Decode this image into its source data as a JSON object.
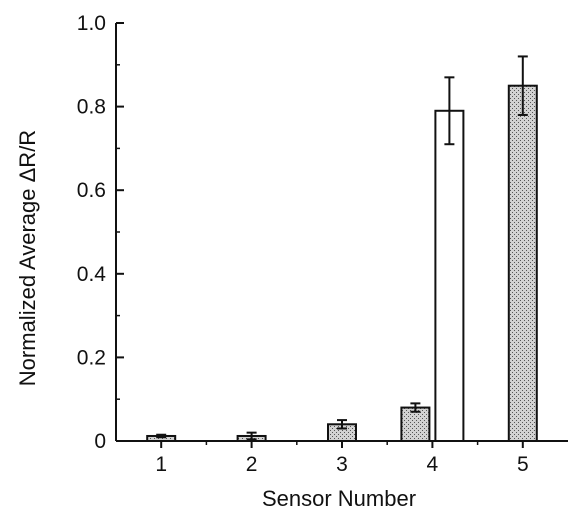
{
  "chart_data": {
    "type": "bar",
    "xlabel": "Sensor Number",
    "ylabel": "Normalized Average ΔR/R",
    "categories": [
      "1",
      "2",
      "3",
      "4",
      "5"
    ],
    "ylim": [
      0,
      1.0
    ],
    "yticks": [
      "0",
      "0.2",
      "0.4",
      "0.6",
      "0.8",
      "1.0"
    ],
    "grid": false,
    "legend": "none",
    "series": [
      {
        "fill": "#c9c9c9",
        "pattern": "stippled",
        "values": [
          0.012,
          0.012,
          0.04,
          0.08,
          0.85
        ],
        "errors": [
          0.003,
          0.008,
          0.01,
          0.01,
          0.07
        ]
      },
      {
        "fill": "#ffffff",
        "values": [
          null,
          null,
          null,
          0.79,
          null
        ],
        "errors": [
          null,
          null,
          null,
          0.08,
          null
        ]
      }
    ]
  }
}
